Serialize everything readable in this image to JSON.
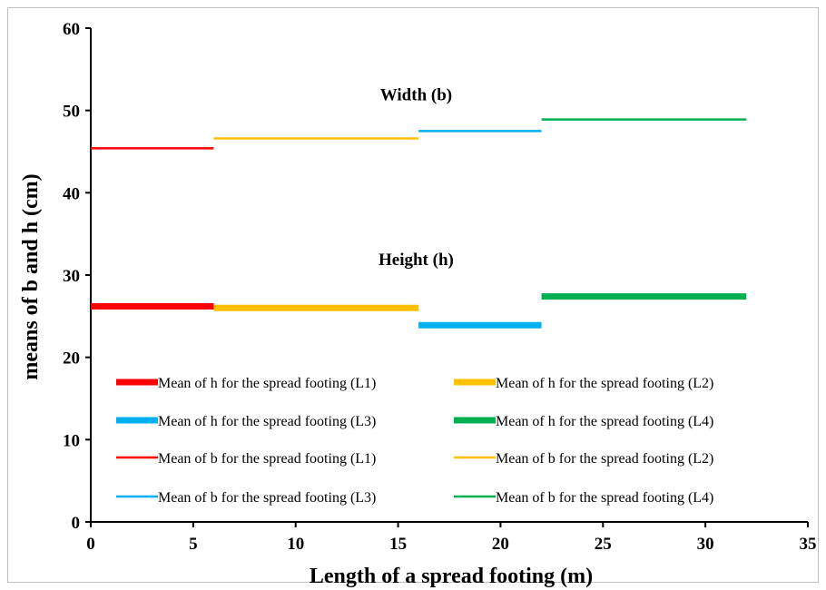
{
  "chart_data": {
    "type": "line",
    "title": "",
    "xlabel": "Length of a spread footing (m)",
    "ylabel": "means of b and h (cm)",
    "xlim": [
      0,
      35
    ],
    "ylim": [
      0,
      60
    ],
    "xticks": [
      0,
      5,
      10,
      15,
      20,
      25,
      30,
      35
    ],
    "yticks": [
      0,
      10,
      20,
      30,
      40,
      50,
      60
    ],
    "grid": false,
    "legend_position": "bottom-inside",
    "annotations": [
      {
        "text": "Width (b)",
        "x": 16.5,
        "y": 51
      },
      {
        "text": "Height (h)",
        "x": 16.5,
        "y": 31
      }
    ],
    "series": [
      {
        "name": "Mean of h for the spread footing (L1)",
        "color": "#ff0000",
        "style": "thick",
        "x": [
          0,
          6
        ],
        "y": [
          26.2,
          26.2
        ]
      },
      {
        "name": "Mean of h for the spread footing (L2)",
        "color": "#ffc000",
        "style": "thick",
        "x": [
          6,
          16
        ],
        "y": [
          26.0,
          26.0
        ]
      },
      {
        "name": "Mean of h for the spread footing (L3)",
        "color": "#00b0f0",
        "style": "thick",
        "x": [
          16,
          22
        ],
        "y": [
          23.9,
          23.9
        ]
      },
      {
        "name": "Mean of h for the spread footing (L4)",
        "color": "#00b050",
        "style": "thick",
        "x": [
          22,
          32
        ],
        "y": [
          27.4,
          27.4
        ]
      },
      {
        "name": "Mean of b for the spread footing (L1)",
        "color": "#ff0000",
        "style": "thin",
        "x": [
          0,
          6
        ],
        "y": [
          45.4,
          45.4
        ]
      },
      {
        "name": "Mean of b for the spread footing (L2)",
        "color": "#ffc000",
        "style": "thin",
        "x": [
          6,
          16
        ],
        "y": [
          46.6,
          46.6
        ]
      },
      {
        "name": "Mean of b for the spread footing (L3)",
        "color": "#00b0f0",
        "style": "thin",
        "x": [
          16,
          22
        ],
        "y": [
          47.5,
          47.5
        ]
      },
      {
        "name": "Mean of b for the spread footing (L4)",
        "color": "#00b050",
        "style": "thin",
        "x": [
          22,
          32
        ],
        "y": [
          48.9,
          48.9
        ]
      }
    ]
  }
}
